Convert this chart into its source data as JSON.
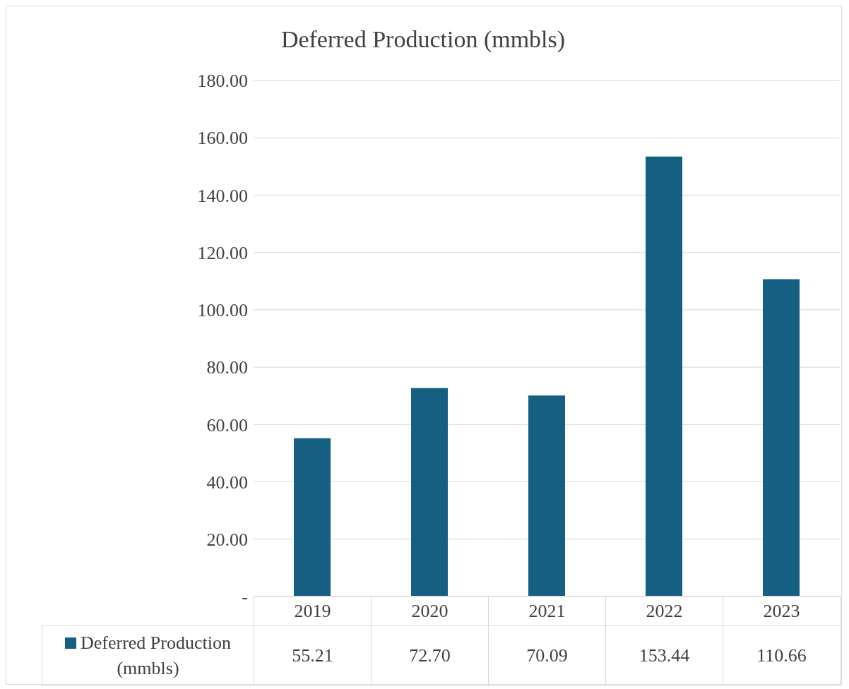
{
  "chart_data": {
    "type": "bar",
    "title": "Deferred Production (mmbls)",
    "categories": [
      "2019",
      "2020",
      "2021",
      "2022",
      "2023"
    ],
    "series": [
      {
        "name": "Deferred Production (mmbls)",
        "color": "#155f82",
        "values": [
          55.21,
          72.7,
          70.09,
          153.44,
          110.66
        ]
      }
    ],
    "value_labels": [
      "55.21",
      "72.70",
      "70.09",
      "153.44",
      "110.66"
    ],
    "ylim": [
      0,
      180
    ],
    "yticks": [
      {
        "value": 0,
        "label": "-"
      },
      {
        "value": 20,
        "label": "20.00"
      },
      {
        "value": 40,
        "label": "40.00"
      },
      {
        "value": 60,
        "label": "60.00"
      },
      {
        "value": 80,
        "label": "80.00"
      },
      {
        "value": 100,
        "label": "100.00"
      },
      {
        "value": 120,
        "label": "120.00"
      },
      {
        "value": 140,
        "label": "140.00"
      },
      {
        "value": 160,
        "label": "160.00"
      },
      {
        "value": 180,
        "label": "180.00"
      }
    ],
    "grid": "y",
    "legend": "bottom"
  }
}
